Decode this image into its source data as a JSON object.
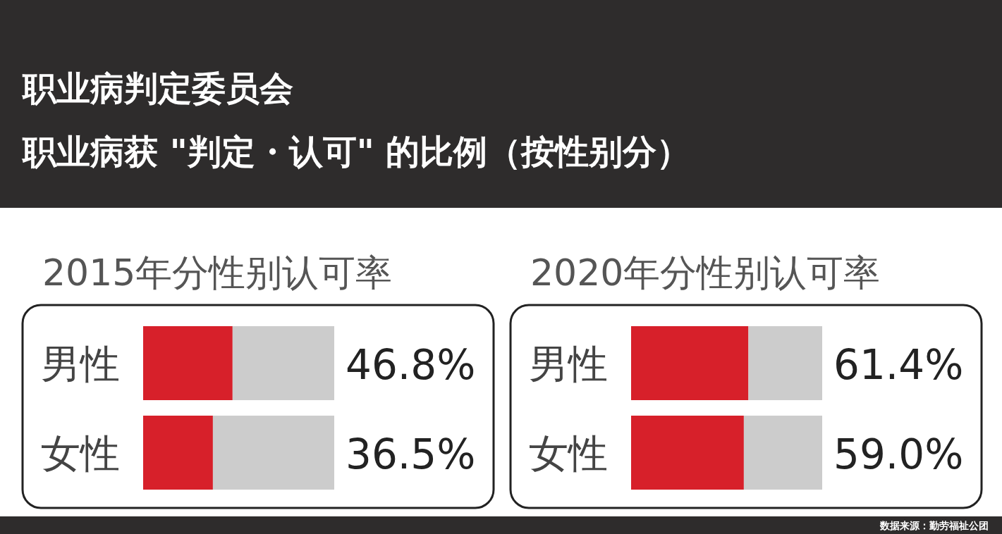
{
  "chart_data": [
    {
      "type": "other",
      "title": "职业病判定委员会",
      "subtitle": "职业病获 \"判定・认可\" 的比例（按性别分）",
      "annotations": [
        "数据来源：勤劳福祉公团"
      ]
    },
    {
      "type": "bar",
      "title": "2015年分性别认可率",
      "orientation": "horizontal",
      "stacked": true,
      "xlim": [
        0,
        100
      ],
      "categories": [
        "男性",
        "女性"
      ],
      "series": [
        {
          "color": "#d7202a",
          "values": [
            46.8,
            36.5
          ],
          "value_labels": [
            "46.8%",
            "36.5%"
          ]
        },
        {
          "color": "#cccccc",
          "values": [
            53.2,
            63.5
          ]
        }
      ]
    },
    {
      "type": "bar",
      "title": "2020年分性别认可率",
      "orientation": "horizontal",
      "stacked": true,
      "xlim": [
        0,
        100
      ],
      "categories": [
        "男性",
        "女性"
      ],
      "series": [
        {
          "color": "#d7202a",
          "values": [
            61.4,
            59.0
          ],
          "value_labels": [
            "61.4%",
            "59.0%"
          ]
        },
        {
          "color": "#cccccc",
          "values": [
            38.6,
            41.0
          ]
        }
      ]
    }
  ]
}
